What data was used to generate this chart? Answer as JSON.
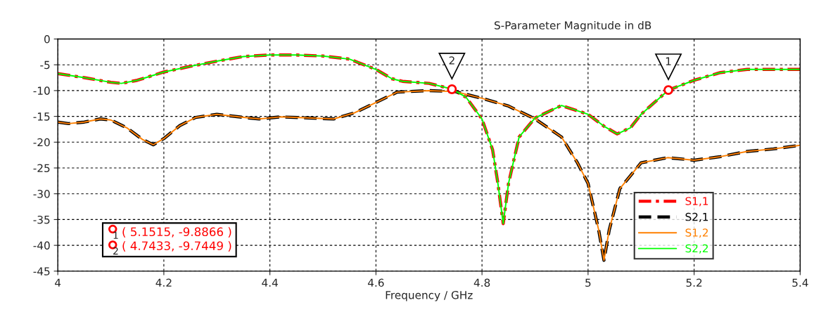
{
  "chart_data": {
    "type": "line",
    "title": "S-Parameter Magnitude in dB",
    "xlabel": "Frequency / GHz",
    "xlim": [
      4,
      5.4
    ],
    "xticks": [
      4,
      4.2,
      4.4,
      4.6,
      4.8,
      5,
      5.2,
      5.4
    ],
    "ylim": [
      -45,
      0
    ],
    "yticks": [
      0,
      -5,
      -10,
      -15,
      -20,
      -25,
      -30,
      -35,
      -40,
      -45
    ],
    "grid": true,
    "legend": "bottom right",
    "marker": "none",
    "series": [
      {
        "name": "S1,1",
        "color": "#ff0000",
        "line_style": "dashdot",
        "x": [
          4.0,
          4.05,
          4.1,
          4.12,
          4.15,
          4.2,
          4.25,
          4.3,
          4.35,
          4.4,
          4.45,
          4.5,
          4.55,
          4.6,
          4.63,
          4.65,
          4.7,
          4.7433,
          4.77,
          4.8,
          4.82,
          4.83,
          4.84,
          4.85,
          4.87,
          4.9,
          4.95,
          5.0,
          5.03,
          5.055,
          5.08,
          5.1,
          5.1515,
          5.2,
          5.25,
          5.3,
          5.35,
          5.4
        ],
        "values": [
          -6.7,
          -7.5,
          -8.4,
          -8.6,
          -8.0,
          -6.4,
          -5.3,
          -4.3,
          -3.4,
          -3.1,
          -3.1,
          -3.3,
          -3.9,
          -5.9,
          -7.7,
          -8.2,
          -8.6,
          -9.7,
          -11.3,
          -15.5,
          -21.5,
          -28,
          -35.8,
          -28,
          -19,
          -15.3,
          -12.9,
          -14.6,
          -16.9,
          -18.4,
          -17.2,
          -14.6,
          -9.9,
          -8,
          -6.5,
          -5.9,
          -5.9,
          -5.9
        ]
      },
      {
        "name": "S2,1",
        "color": "#000000",
        "line_style": "dashed",
        "x": [
          4.0,
          4.02,
          4.05,
          4.08,
          4.1,
          4.13,
          4.16,
          4.18,
          4.2,
          4.23,
          4.26,
          4.3,
          4.35,
          4.38,
          4.42,
          4.47,
          4.52,
          4.56,
          4.6,
          4.64,
          4.7,
          4.75,
          4.8,
          4.85,
          4.9,
          4.95,
          4.98,
          5.0,
          5.02,
          5.03,
          5.04,
          5.06,
          5.1,
          5.15,
          5.2,
          5.25,
          5.3,
          5.35,
          5.4
        ],
        "values": [
          -16.1,
          -16.4,
          -16.1,
          -15.5,
          -15.7,
          -17.2,
          -19.5,
          -20.5,
          -19.3,
          -16.8,
          -15.2,
          -14.6,
          -15.2,
          -15.5,
          -15.1,
          -15.3,
          -15.5,
          -14.3,
          -12.3,
          -10.3,
          -10,
          -10.2,
          -11.5,
          -13,
          -15.5,
          -19,
          -24,
          -28,
          -37,
          -42.9,
          -37,
          -29,
          -24,
          -23,
          -23.5,
          -22.8,
          -21.8,
          -21.3,
          -20.6
        ]
      },
      {
        "name": "S1,2",
        "color": "#ff8000",
        "line_style": "solid",
        "x": [
          4.0,
          4.02,
          4.05,
          4.08,
          4.1,
          4.13,
          4.16,
          4.18,
          4.2,
          4.23,
          4.26,
          4.3,
          4.35,
          4.38,
          4.42,
          4.47,
          4.52,
          4.56,
          4.6,
          4.64,
          4.7,
          4.75,
          4.8,
          4.85,
          4.9,
          4.95,
          4.98,
          5.0,
          5.02,
          5.03,
          5.04,
          5.06,
          5.1,
          5.15,
          5.2,
          5.25,
          5.3,
          5.35,
          5.4
        ],
        "values": [
          -16.1,
          -16.4,
          -16.1,
          -15.5,
          -15.7,
          -17.2,
          -19.5,
          -20.5,
          -19.3,
          -16.8,
          -15.2,
          -14.6,
          -15.2,
          -15.5,
          -15.1,
          -15.3,
          -15.5,
          -14.3,
          -12.3,
          -10.3,
          -10,
          -10.2,
          -11.5,
          -13,
          -15.5,
          -19,
          -24,
          -28,
          -37,
          -42.9,
          -37,
          -29,
          -24,
          -23,
          -23.5,
          -22.8,
          -21.8,
          -21.3,
          -20.6
        ]
      },
      {
        "name": "S2,2",
        "color": "#00ff00",
        "line_style": "solid",
        "x": [
          4.0,
          4.05,
          4.1,
          4.12,
          4.15,
          4.2,
          4.25,
          4.3,
          4.35,
          4.4,
          4.45,
          4.5,
          4.55,
          4.6,
          4.63,
          4.65,
          4.7,
          4.7433,
          4.77,
          4.8,
          4.82,
          4.83,
          4.84,
          4.85,
          4.87,
          4.9,
          4.95,
          5.0,
          5.03,
          5.055,
          5.08,
          5.1,
          5.1515,
          5.2,
          5.25,
          5.3,
          5.35,
          5.4
        ],
        "values": [
          -6.7,
          -7.5,
          -8.4,
          -8.6,
          -8.0,
          -6.4,
          -5.3,
          -4.3,
          -3.4,
          -3.1,
          -3.1,
          -3.3,
          -3.9,
          -5.9,
          -7.7,
          -8.2,
          -8.6,
          -9.7,
          -11.3,
          -15.5,
          -21.5,
          -28,
          -35.8,
          -28,
          -19,
          -15.3,
          -12.9,
          -14.6,
          -16.9,
          -18.4,
          -17.2,
          -14.6,
          -9.9,
          -8,
          -6.5,
          -5.9,
          -5.9,
          -5.9
        ]
      }
    ],
    "annotations": [
      {
        "text": "1",
        "x": 5.1515,
        "y": -9.8866
      },
      {
        "text": "2",
        "x": 4.7433,
        "y": -9.7449
      },
      "( 5.1515, -9.8866 )",
      "( 4.7433, -9.7449 )"
    ]
  }
}
